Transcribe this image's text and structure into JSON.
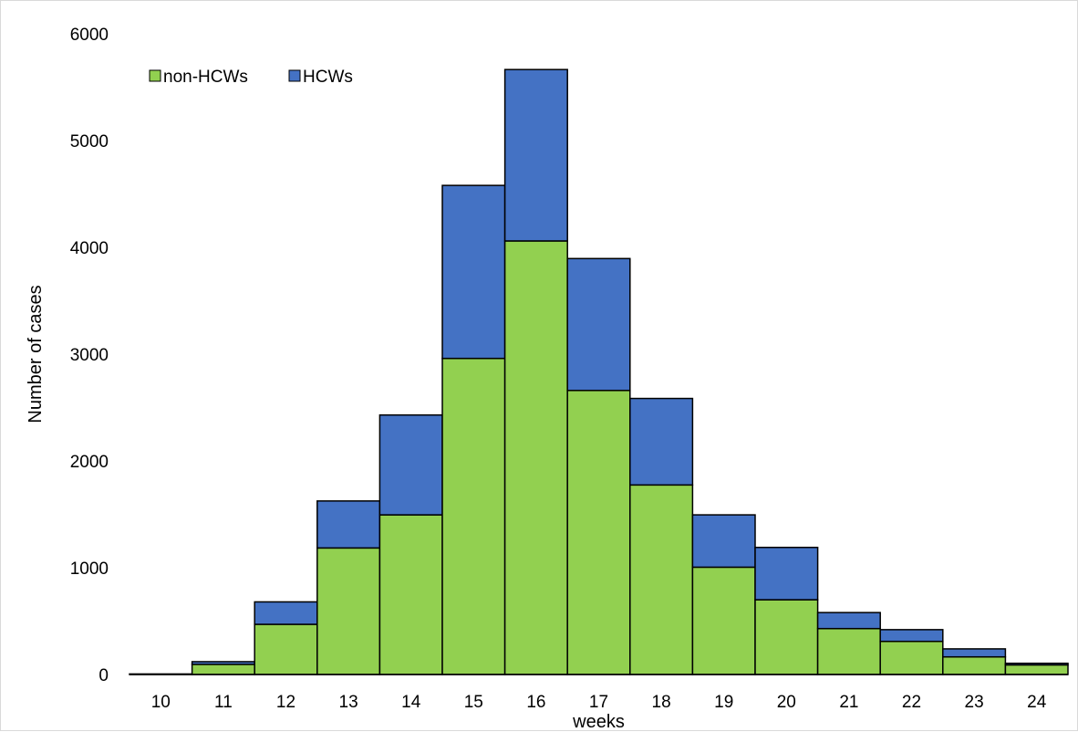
{
  "chart_data": {
    "type": "bar",
    "stacked": true,
    "title": "",
    "xlabel": "weeks",
    "ylabel": "Number of cases",
    "categories": [
      "10",
      "11",
      "12",
      "13",
      "14",
      "15",
      "16",
      "17",
      "18",
      "19",
      "20",
      "21",
      "22",
      "23",
      "24"
    ],
    "series": [
      {
        "name": "non-HCWs",
        "color": "#92d050",
        "values": [
          5,
          95,
          470,
          1185,
          1495,
          2960,
          4060,
          2660,
          1775,
          1005,
          700,
          430,
          310,
          165,
          90
        ]
      },
      {
        "name": "HCWs",
        "color": "#4472c4",
        "values": [
          0,
          25,
          210,
          440,
          935,
          1620,
          1605,
          1235,
          810,
          490,
          490,
          150,
          110,
          75,
          15
        ]
      }
    ],
    "ylim": [
      0,
      6000
    ],
    "yticks": [
      0,
      1000,
      2000,
      3000,
      4000,
      5000,
      6000
    ],
    "grid": false,
    "legend_position": "top-left"
  }
}
